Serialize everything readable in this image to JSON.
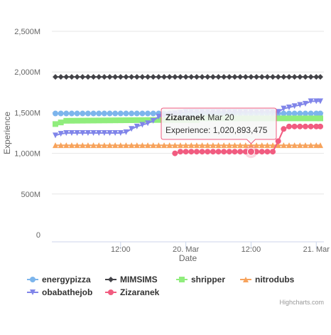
{
  "chart_data": {
    "type": "line",
    "title": "",
    "xlabel": "Date",
    "ylabel": "Experience",
    "ylim": [
      0,
      2500000000
    ],
    "y_ticks": [
      {
        "value": 0,
        "label": "0"
      },
      {
        "value": 500000000,
        "label": "500M"
      },
      {
        "value": 1000000000,
        "label": "1,000M"
      },
      {
        "value": 1500000000,
        "label": "1,500M"
      },
      {
        "value": 2000000000,
        "label": "2,000M"
      },
      {
        "value": 2500000000,
        "label": "2,500M"
      }
    ],
    "x_range_hours": [
      0,
      48.75
    ],
    "x_ticks": [
      {
        "hour": 12,
        "label": "12:00"
      },
      {
        "hour": 24,
        "label": "20. Mar"
      },
      {
        "hour": 36,
        "label": "12:00"
      },
      {
        "hour": 48,
        "label": "21. Mar"
      }
    ],
    "grid": "horizontal",
    "legend_position": "bottom-left",
    "series": [
      {
        "name": "energypizza",
        "color": "#7cb5ec",
        "marker": "circle",
        "x_start": 0,
        "x_end": 48.75,
        "step": 1,
        "points": [
          [
            0,
            1490000000
          ],
          [
            48.75,
            1490000000
          ]
        ]
      },
      {
        "name": "MIMSIMS",
        "color": "#434348",
        "marker": "diamond",
        "x_start": 0,
        "x_end": 48.75,
        "step": 1,
        "points": [
          [
            0,
            1940000000
          ],
          [
            48.75,
            1940000000
          ]
        ]
      },
      {
        "name": "shripper",
        "color": "#90ed7d",
        "marker": "square",
        "x_start": 0,
        "x_end": 48.75,
        "step": 1,
        "points": [
          [
            0,
            1360000000
          ],
          [
            1,
            1380000000
          ],
          [
            2,
            1400000000
          ],
          [
            18,
            1410000000
          ],
          [
            26,
            1410000000
          ],
          [
            27,
            1430000000
          ],
          [
            48.75,
            1430000000
          ]
        ]
      },
      {
        "name": "nitrodubs",
        "color": "#f7a35c",
        "marker": "triangle",
        "x_start": 0,
        "x_end": 48.75,
        "step": 1,
        "points": [
          [
            0,
            1100000000
          ],
          [
            48.75,
            1100000000
          ]
        ]
      },
      {
        "name": "obabathejob",
        "color": "#8085e9",
        "marker": "triangle-down",
        "x_start": 0,
        "x_end": 48.75,
        "step": 1,
        "points": [
          [
            0,
            1220000000
          ],
          [
            1,
            1240000000
          ],
          [
            2,
            1250000000
          ],
          [
            12,
            1250000000
          ],
          [
            13,
            1260000000
          ],
          [
            14,
            1300000000
          ],
          [
            15,
            1330000000
          ],
          [
            17,
            1370000000
          ],
          [
            18,
            1400000000
          ],
          [
            19,
            1450000000
          ],
          [
            21,
            1480000000
          ],
          [
            24,
            1510000000
          ],
          [
            41,
            1510000000
          ],
          [
            42,
            1550000000
          ],
          [
            44,
            1580000000
          ],
          [
            46,
            1610000000
          ],
          [
            47,
            1640000000
          ],
          [
            48.75,
            1640000000
          ]
        ]
      },
      {
        "name": "Zizaranek",
        "color": "#f15c80",
        "marker": "circle",
        "x_start": 22,
        "x_end": 48.75,
        "step": 1,
        "points": [
          [
            22,
            1000000000
          ],
          [
            23,
            1020893475
          ],
          [
            40,
            1020893475
          ],
          [
            40.5,
            1060000000
          ],
          [
            41,
            1150000000
          ],
          [
            42,
            1300000000
          ],
          [
            43,
            1330000000
          ],
          [
            48.75,
            1330000000
          ]
        ]
      }
    ],
    "tooltip": {
      "series": "Zizaranek",
      "date": "Mar 20",
      "label": "Experience",
      "value": "1,020,893,475",
      "x_hour": 36,
      "y_value": 1020893475
    },
    "credits": "Highcharts.com"
  }
}
